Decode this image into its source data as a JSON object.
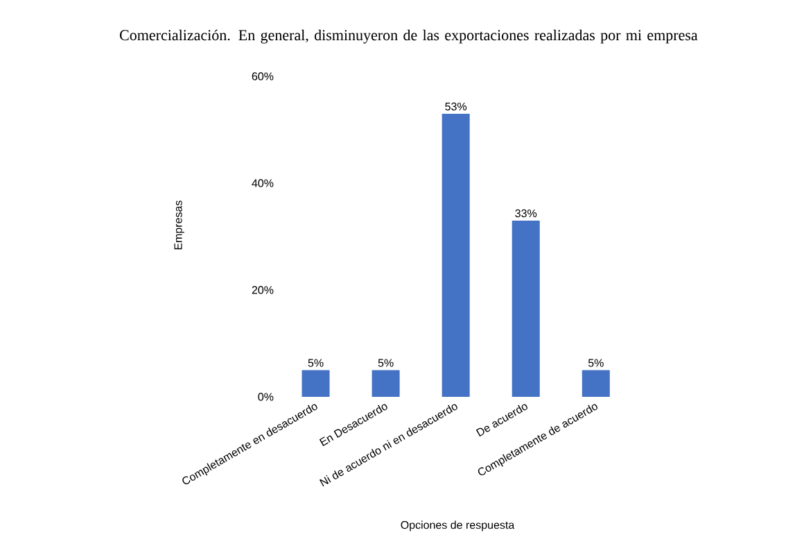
{
  "chart_data": {
    "type": "bar",
    "title": "Comercialización. En general, disminuyeron de las exportaciones realizadas por mi empresa",
    "xlabel": "Opciones de respuesta",
    "ylabel": "Empresas",
    "categories": [
      "Completamente en desacuerdo",
      "En Desacuerdo",
      "Ni de acuerdo ni en desacuerdo",
      "De acuerdo",
      "Completamente de acuerdo"
    ],
    "values": [
      5,
      5,
      53,
      33,
      5
    ],
    "value_labels": [
      "5%",
      "5%",
      "53%",
      "33%",
      "5%"
    ],
    "color": "#4472c4",
    "ylim": [
      0,
      60
    ],
    "yticks": [
      {
        "value": 0,
        "label": "0%"
      },
      {
        "value": 20,
        "label": "20%"
      },
      {
        "value": 40,
        "label": "40%"
      },
      {
        "value": 60,
        "label": "60%"
      }
    ],
    "grid": false
  }
}
